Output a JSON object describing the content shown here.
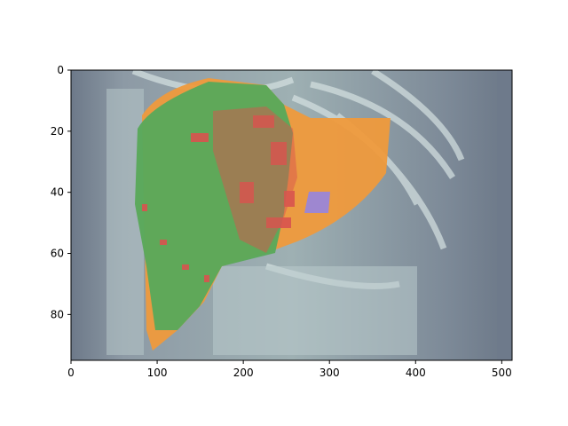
{
  "figure": {
    "background": "#ffffff",
    "image_description_colors": {
      "ct_background": "#6f7b8c",
      "orange_region": "#ef9a3c",
      "green_region": "#5aa85a",
      "red_region": "#d9534f",
      "purple_region": "#9a86d8"
    }
  },
  "axes": {
    "x": {
      "range": [
        0,
        512
      ],
      "ticks": [
        0,
        100,
        200,
        300,
        400,
        500
      ],
      "tick_labels": [
        "0",
        "100",
        "200",
        "300",
        "400",
        "500"
      ]
    },
    "y": {
      "range": [
        0,
        95
      ],
      "inverted": true,
      "ticks": [
        0,
        20,
        40,
        60,
        80
      ],
      "tick_labels": [
        "0",
        "20",
        "40",
        "60",
        "80"
      ]
    },
    "title": "",
    "xlabel": "",
    "ylabel": ""
  }
}
